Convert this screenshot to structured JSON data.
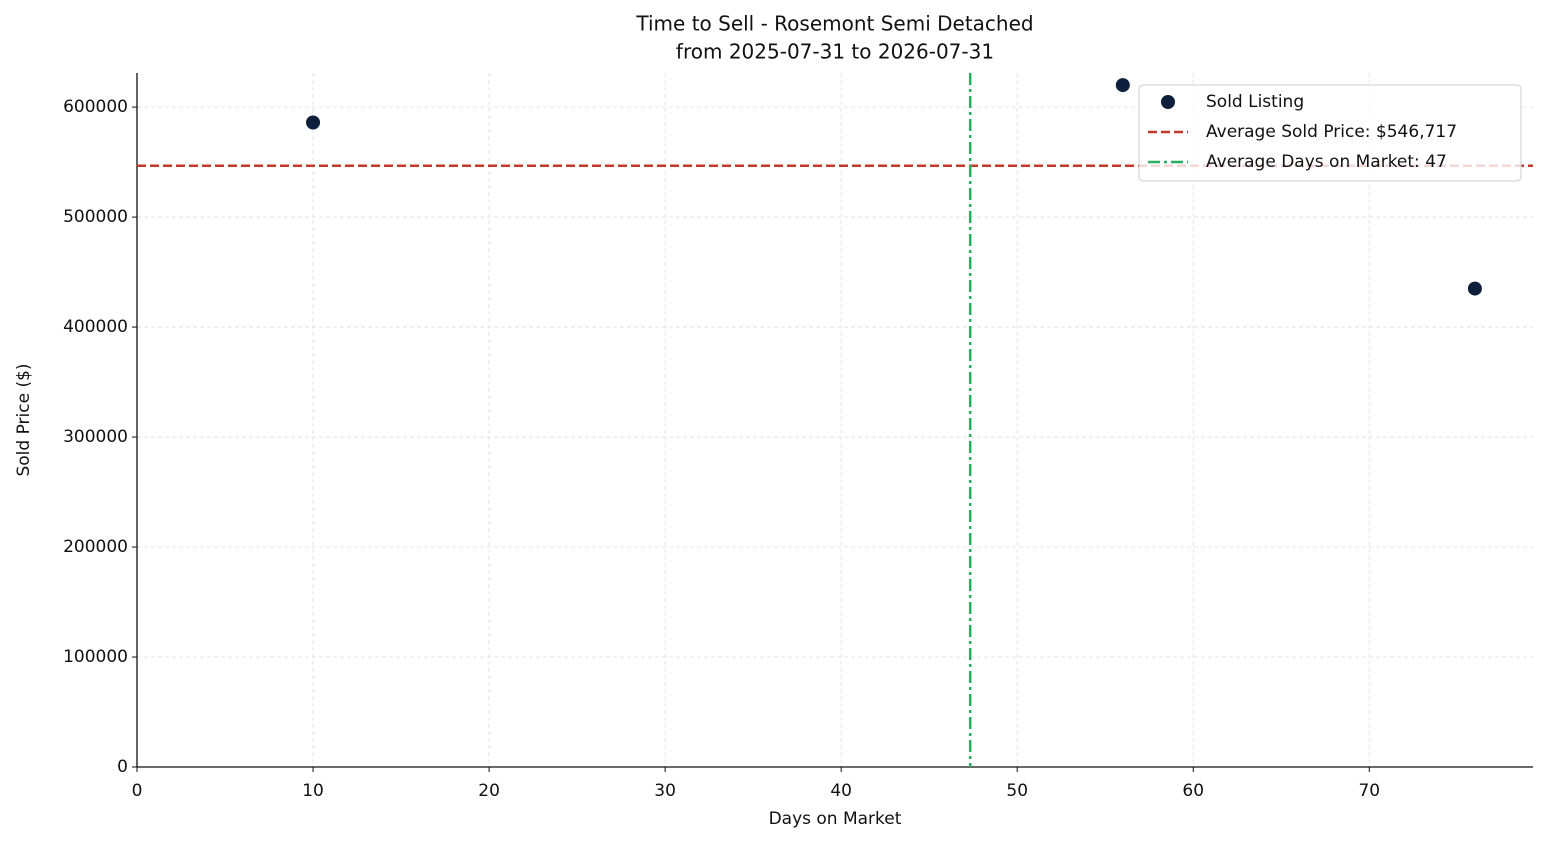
{
  "chart_data": {
    "type": "scatter",
    "title": "Time to Sell - Rosemont Semi Detached",
    "subtitle": "from 2025-07-31 to 2026-07-31",
    "xlabel": "Days on Market",
    "ylabel": "Sold Price ($)",
    "series": [
      {
        "name": "Sold Listing",
        "color": "#0d1f3c",
        "x": [
          10,
          56,
          76
        ],
        "values": [
          586000,
          620000,
          435000
        ]
      }
    ],
    "reference_lines": [
      {
        "name": "Average Sold Price: $546,717",
        "color": "#c0392b",
        "axis": "y",
        "value": 546717,
        "style": "dashed"
      },
      {
        "name": "Average Days on Market: 47",
        "color": "#27ae60",
        "axis": "x",
        "value": 47.33,
        "style": "dashdot"
      }
    ],
    "xlim": [
      0,
      79.3
    ],
    "ylim": [
      0,
      631000
    ],
    "xticks": [
      0,
      10,
      20,
      30,
      40,
      50,
      60,
      70
    ],
    "yticks": [
      0,
      100000,
      200000,
      300000,
      400000,
      500000,
      600000
    ],
    "grid": true,
    "legend": "upper right"
  }
}
